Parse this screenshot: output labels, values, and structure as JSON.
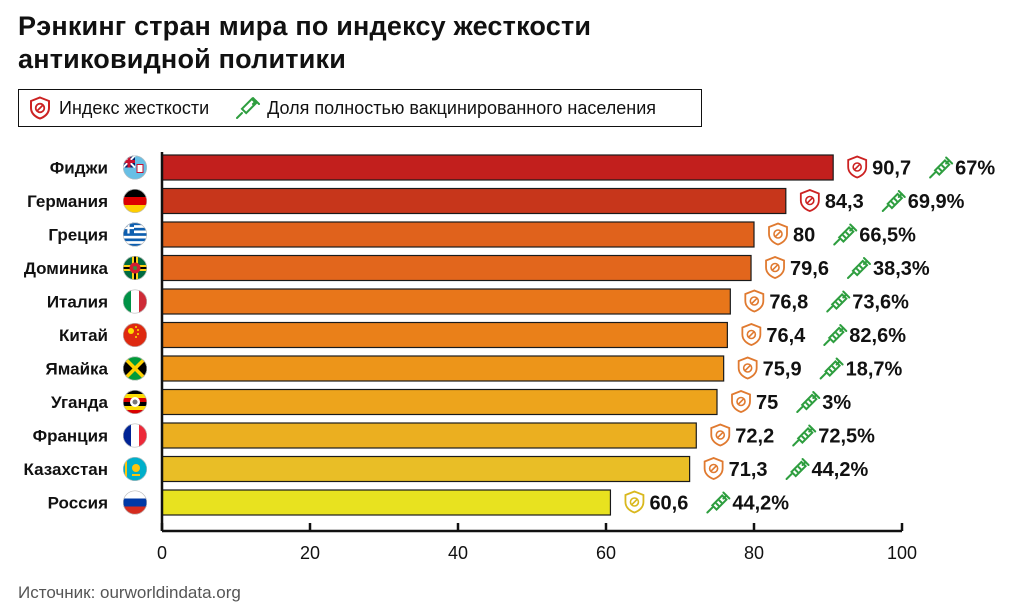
{
  "title_line1": "Рэнкинг стран мира по индексу жесткости",
  "title_line2": "антиковидной политики",
  "legend": {
    "stringency_label": "Индекс жесткости",
    "vaccination_label": "Доля полностью вакцинированного населения"
  },
  "source": "Источник: ourworldindata.org",
  "colors": {
    "bar_high": "#c81e1e",
    "bar_mid": "#e8761a",
    "bar_low": "#e8e21f",
    "vaccine": "#2e9e3f",
    "shield_red": "#cc2222",
    "shield_orange": "#e07a30",
    "shield_yellow": "#d9b81e"
  },
  "icons": {
    "stringency": "shield-icon",
    "vaccination": "syringe-icon"
  },
  "chart_data": {
    "type": "bar",
    "orientation": "horizontal",
    "categories": [
      "Фиджи",
      "Германия",
      "Греция",
      "Доминика",
      "Италия",
      "Китай",
      "Ямайка",
      "Уганда",
      "Франция",
      "Казахстан",
      "Россия"
    ],
    "values": [
      90.7,
      84.3,
      80,
      79.6,
      76.8,
      76.4,
      75.9,
      75,
      72.2,
      71.3,
      60.6
    ],
    "value_labels": [
      "90,7",
      "84,3",
      "80",
      "79,6",
      "76,8",
      "76,4",
      "75,9",
      "75",
      "72,2",
      "71,3",
      "60,6"
    ],
    "vaccination": [
      "67%",
      "69,9%",
      "66,5%",
      "38,3%",
      "73,6%",
      "82,6%",
      "18,7%",
      "3%",
      "72,5%",
      "44,2%",
      "44,2%"
    ],
    "flags": [
      "fiji-flag",
      "germany-flag",
      "greece-flag",
      "dominica-flag",
      "italy-flag",
      "china-flag",
      "jamaica-flag",
      "uganda-flag",
      "france-flag",
      "kazakhstan-flag",
      "russia-flag"
    ],
    "bar_colors": [
      "#c21f1d",
      "#c7361b",
      "#e0621c",
      "#e2661c",
      "#e8761a",
      "#ea8019",
      "#ed9519",
      "#eda41c",
      "#ebaf20",
      "#e9be26",
      "#e8e21f"
    ],
    "xlim": [
      0,
      100
    ],
    "xticks": [
      "0",
      "20",
      "40",
      "60",
      "80",
      "100"
    ],
    "xlabel": "",
    "ylabel": ""
  }
}
